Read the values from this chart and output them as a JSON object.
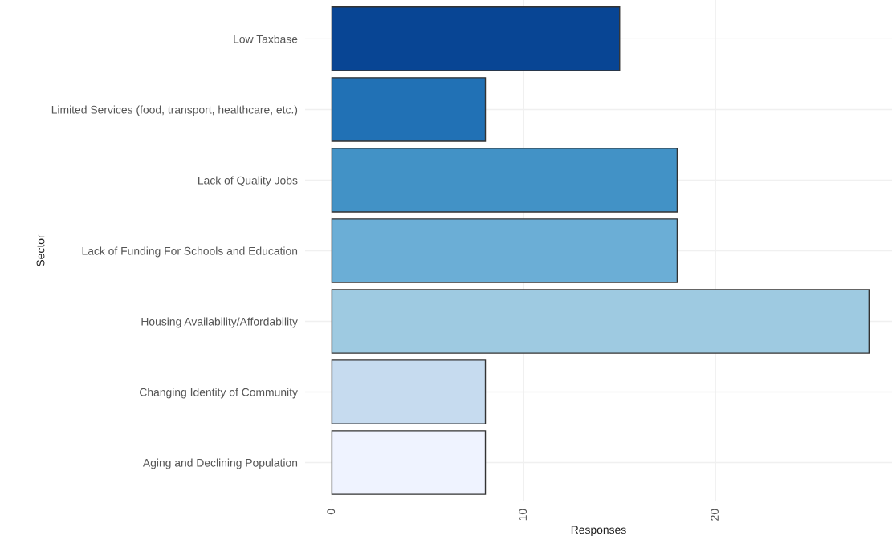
{
  "chart_data": {
    "type": "bar",
    "orientation": "horizontal",
    "xlabel": "Responses",
    "ylabel": "Sector",
    "categories": [
      "Low Taxbase",
      "Limited Services (food, transport, healthcare, etc.)",
      "Lack of Quality Jobs",
      "Lack of Funding For Schools and Education",
      "Housing Availability/Affordability",
      "Changing Identity of Community",
      "Aging and Declining Population"
    ],
    "values": [
      15,
      8,
      18,
      18,
      28,
      8,
      8
    ],
    "colors": [
      "#084594",
      "#2171b5",
      "#4292c6",
      "#6baed6",
      "#9ecae1",
      "#c6dbef",
      "#eff3ff"
    ],
    "xlim": [
      -1.4,
      29.2
    ],
    "xticks": [
      0,
      10,
      20
    ],
    "grid": true
  }
}
